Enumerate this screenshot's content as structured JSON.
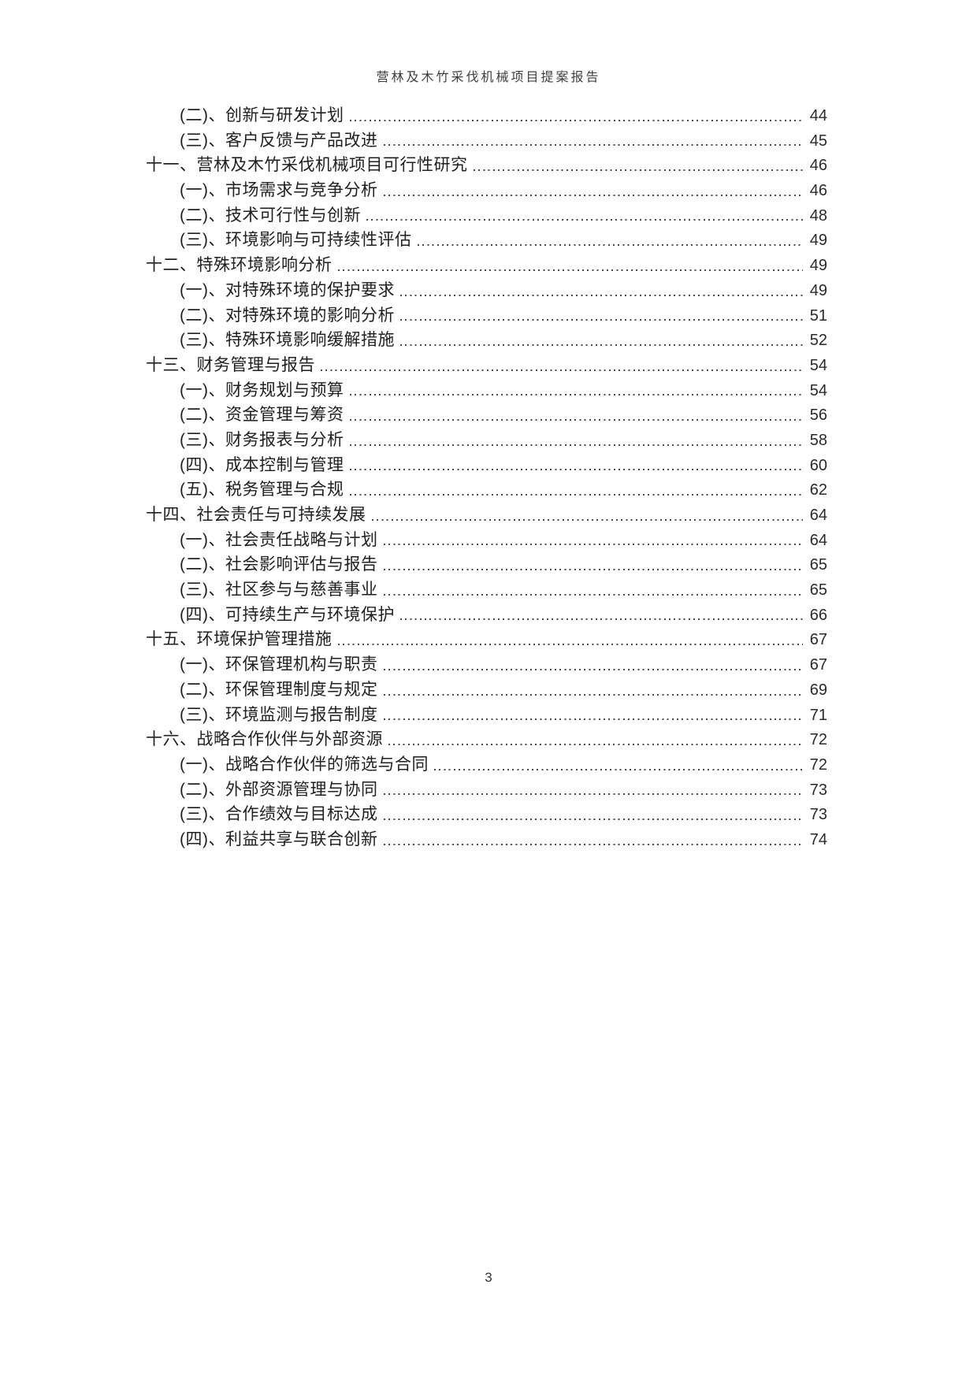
{
  "document": {
    "header_title": "营林及木竹采伐机械项目提案报告",
    "footer_page_number": "3"
  },
  "colors": {
    "page_background": "#ffffff",
    "body_text": "#1f1f1f",
    "leader_dots": "#4a4a4a",
    "header_text": "#3d3d3d"
  },
  "toc": {
    "entries": [
      {
        "level": 2,
        "label": "(二)、创新与研发计划",
        "page": "44"
      },
      {
        "level": 2,
        "label": "(三)、客户反馈与产品改进",
        "page": "45"
      },
      {
        "level": 1,
        "label": "十一、营林及木竹采伐机械项目可行性研究",
        "page": "46"
      },
      {
        "level": 2,
        "label": "(一)、市场需求与竞争分析",
        "page": "46"
      },
      {
        "level": 2,
        "label": "(二)、技术可行性与创新",
        "page": "48"
      },
      {
        "level": 2,
        "label": "(三)、环境影响与可持续性评估",
        "page": "49"
      },
      {
        "level": 1,
        "label": "十二、特殊环境影响分析",
        "page": "49"
      },
      {
        "level": 2,
        "label": "(一)、对特殊环境的保护要求",
        "page": "49"
      },
      {
        "level": 2,
        "label": "(二)、对特殊环境的影响分析",
        "page": "51"
      },
      {
        "level": 2,
        "label": "(三)、特殊环境影响缓解措施",
        "page": "52"
      },
      {
        "level": 1,
        "label": "十三、财务管理与报告",
        "page": "54"
      },
      {
        "level": 2,
        "label": "(一)、财务规划与预算",
        "page": "54"
      },
      {
        "level": 2,
        "label": "(二)、资金管理与筹资",
        "page": "56"
      },
      {
        "level": 2,
        "label": "(三)、财务报表与分析",
        "page": "58"
      },
      {
        "level": 2,
        "label": "(四)、成本控制与管理",
        "page": "60"
      },
      {
        "level": 2,
        "label": "(五)、税务管理与合规",
        "page": "62"
      },
      {
        "level": 1,
        "label": "十四、社会责任与可持续发展",
        "page": "64"
      },
      {
        "level": 2,
        "label": "(一)、社会责任战略与计划",
        "page": "64"
      },
      {
        "level": 2,
        "label": "(二)、社会影响评估与报告",
        "page": "65"
      },
      {
        "level": 2,
        "label": "(三)、社区参与与慈善事业",
        "page": "65"
      },
      {
        "level": 2,
        "label": "(四)、可持续生产与环境保护",
        "page": "66"
      },
      {
        "level": 1,
        "label": "十五、环境保护管理措施",
        "page": "67"
      },
      {
        "level": 2,
        "label": "(一)、环保管理机构与职责",
        "page": "67"
      },
      {
        "level": 2,
        "label": "(二)、环保管理制度与规定",
        "page": "69"
      },
      {
        "level": 2,
        "label": "(三)、环境监测与报告制度",
        "page": "71"
      },
      {
        "level": 1,
        "label": "十六、战略合作伙伴与外部资源",
        "page": "72"
      },
      {
        "level": 2,
        "label": "(一)、战略合作伙伴的筛选与合同",
        "page": "72"
      },
      {
        "level": 2,
        "label": "(二)、外部资源管理与协同",
        "page": "73"
      },
      {
        "level": 2,
        "label": "(三)、合作绩效与目标达成",
        "page": "73"
      },
      {
        "level": 2,
        "label": "(四)、利益共享与联合创新",
        "page": "74"
      }
    ]
  }
}
